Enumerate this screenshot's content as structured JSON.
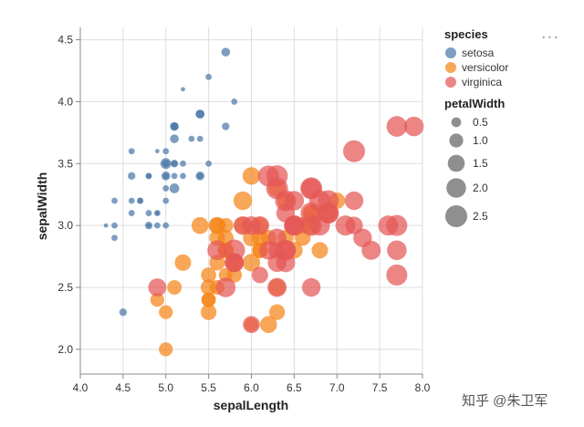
{
  "menu": {
    "icon": "more-horizontal-icon",
    "glyph": "···"
  },
  "watermark": "知乎 @朱卫军",
  "legend": {
    "species_title": "species",
    "size_title": "petalWidth"
  },
  "chart_data": {
    "type": "scatter",
    "title": "",
    "xlabel": "sepalLength",
    "ylabel": "sepalWidth",
    "xlim": [
      4.0,
      8.0
    ],
    "ylim": [
      1.8,
      4.6
    ],
    "xticks": [
      "4.0",
      "4.5",
      "5.0",
      "5.5",
      "6.0",
      "6.5",
      "7.0",
      "7.5",
      "8.0"
    ],
    "yticks": [
      "2.0",
      "2.5",
      "3.0",
      "3.5",
      "4.0",
      "4.5"
    ],
    "grid": true,
    "legend_position": "right",
    "size_field": "petalWidth",
    "size_legend": [
      0.5,
      1.0,
      1.5,
      2.0,
      2.5
    ],
    "series": [
      {
        "name": "setosa",
        "color": "#4c78a8",
        "points": [
          [
            5.1,
            3.5,
            0.2
          ],
          [
            4.9,
            3.0,
            0.2
          ],
          [
            4.7,
            3.2,
            0.2
          ],
          [
            4.6,
            3.1,
            0.2
          ],
          [
            5.0,
            3.6,
            0.2
          ],
          [
            5.4,
            3.9,
            0.4
          ],
          [
            4.6,
            3.4,
            0.3
          ],
          [
            5.0,
            3.4,
            0.2
          ],
          [
            4.4,
            2.9,
            0.2
          ],
          [
            4.9,
            3.1,
            0.1
          ],
          [
            5.4,
            3.7,
            0.2
          ],
          [
            4.8,
            3.4,
            0.2
          ],
          [
            4.8,
            3.0,
            0.1
          ],
          [
            4.3,
            3.0,
            0.1
          ],
          [
            5.8,
            4.0,
            0.2
          ],
          [
            5.7,
            4.4,
            0.4
          ],
          [
            5.4,
            3.9,
            0.4
          ],
          [
            5.1,
            3.5,
            0.3
          ],
          [
            5.7,
            3.8,
            0.3
          ],
          [
            5.1,
            3.8,
            0.3
          ],
          [
            5.4,
            3.4,
            0.2
          ],
          [
            5.1,
            3.7,
            0.4
          ],
          [
            4.6,
            3.6,
            0.2
          ],
          [
            5.1,
            3.3,
            0.5
          ],
          [
            4.8,
            3.4,
            0.2
          ],
          [
            5.0,
            3.0,
            0.2
          ],
          [
            5.0,
            3.4,
            0.4
          ],
          [
            5.2,
            3.5,
            0.2
          ],
          [
            5.2,
            3.4,
            0.2
          ],
          [
            4.7,
            3.2,
            0.2
          ],
          [
            4.8,
            3.1,
            0.2
          ],
          [
            5.4,
            3.4,
            0.4
          ],
          [
            5.2,
            4.1,
            0.1
          ],
          [
            5.5,
            4.2,
            0.2
          ],
          [
            4.9,
            3.1,
            0.2
          ],
          [
            5.0,
            3.2,
            0.2
          ],
          [
            5.5,
            3.5,
            0.2
          ],
          [
            4.9,
            3.6,
            0.1
          ],
          [
            4.4,
            3.0,
            0.2
          ],
          [
            5.1,
            3.4,
            0.2
          ],
          [
            5.0,
            3.5,
            0.3
          ],
          [
            4.5,
            2.3,
            0.3
          ],
          [
            4.4,
            3.2,
            0.2
          ],
          [
            5.0,
            3.5,
            0.6
          ],
          [
            5.1,
            3.8,
            0.4
          ],
          [
            4.8,
            3.0,
            0.3
          ],
          [
            5.1,
            3.8,
            0.2
          ],
          [
            4.6,
            3.2,
            0.2
          ],
          [
            5.3,
            3.7,
            0.2
          ],
          [
            5.0,
            3.3,
            0.2
          ]
        ]
      },
      {
        "name": "versicolor",
        "color": "#f58518",
        "points": [
          [
            7.0,
            3.2,
            1.4
          ],
          [
            6.4,
            3.2,
            1.5
          ],
          [
            6.9,
            3.1,
            1.5
          ],
          [
            5.5,
            2.3,
            1.3
          ],
          [
            6.5,
            2.8,
            1.5
          ],
          [
            5.7,
            2.8,
            1.3
          ],
          [
            6.3,
            3.3,
            1.6
          ],
          [
            4.9,
            2.4,
            1.0
          ],
          [
            6.6,
            2.9,
            1.3
          ],
          [
            5.2,
            2.7,
            1.4
          ],
          [
            5.0,
            2.0,
            1.0
          ],
          [
            5.9,
            3.0,
            1.5
          ],
          [
            6.0,
            2.2,
            1.0
          ],
          [
            6.1,
            2.9,
            1.4
          ],
          [
            5.6,
            2.9,
            1.3
          ],
          [
            6.7,
            3.1,
            1.4
          ],
          [
            5.6,
            3.0,
            1.5
          ],
          [
            5.8,
            2.7,
            1.0
          ],
          [
            6.2,
            2.2,
            1.5
          ],
          [
            5.6,
            2.5,
            1.1
          ],
          [
            5.9,
            3.2,
            1.8
          ],
          [
            6.1,
            2.8,
            1.3
          ],
          [
            6.3,
            2.5,
            1.5
          ],
          [
            6.1,
            2.8,
            1.2
          ],
          [
            6.4,
            2.9,
            1.3
          ],
          [
            6.6,
            3.0,
            1.4
          ],
          [
            6.8,
            2.8,
            1.4
          ],
          [
            6.7,
            3.0,
            1.7
          ],
          [
            6.0,
            2.9,
            1.5
          ],
          [
            5.7,
            2.6,
            1.0
          ],
          [
            5.5,
            2.4,
            1.1
          ],
          [
            5.5,
            2.4,
            1.0
          ],
          [
            5.8,
            2.7,
            1.2
          ],
          [
            6.0,
            2.7,
            1.6
          ],
          [
            5.4,
            3.0,
            1.5
          ],
          [
            6.0,
            3.4,
            1.6
          ],
          [
            6.7,
            3.1,
            1.5
          ],
          [
            6.3,
            2.3,
            1.3
          ],
          [
            5.6,
            3.0,
            1.3
          ],
          [
            5.5,
            2.5,
            1.3
          ],
          [
            5.5,
            2.6,
            1.2
          ],
          [
            6.1,
            3.0,
            1.4
          ],
          [
            5.8,
            2.6,
            1.2
          ],
          [
            5.0,
            2.3,
            1.0
          ],
          [
            5.6,
            2.7,
            1.3
          ],
          [
            5.7,
            3.0,
            1.2
          ],
          [
            5.7,
            2.9,
            1.3
          ],
          [
            6.2,
            2.9,
            1.3
          ],
          [
            5.1,
            2.5,
            1.1
          ],
          [
            5.7,
            2.8,
            1.3
          ]
        ]
      },
      {
        "name": "virginica",
        "color": "#e45756",
        "points": [
          [
            6.3,
            3.3,
            2.5
          ],
          [
            5.8,
            2.7,
            1.9
          ],
          [
            7.1,
            3.0,
            2.1
          ],
          [
            6.3,
            2.9,
            1.8
          ],
          [
            6.5,
            3.0,
            2.2
          ],
          [
            7.6,
            3.0,
            2.1
          ],
          [
            4.9,
            2.5,
            1.7
          ],
          [
            7.3,
            2.9,
            1.8
          ],
          [
            6.7,
            2.5,
            1.8
          ],
          [
            7.2,
            3.6,
            2.5
          ],
          [
            6.5,
            3.2,
            2.0
          ],
          [
            6.4,
            2.7,
            1.9
          ],
          [
            6.8,
            3.0,
            2.1
          ],
          [
            5.7,
            2.5,
            2.0
          ],
          [
            5.8,
            2.8,
            2.4
          ],
          [
            6.4,
            3.2,
            2.3
          ],
          [
            6.5,
            3.0,
            1.8
          ],
          [
            7.7,
            3.8,
            2.2
          ],
          [
            7.7,
            2.6,
            2.3
          ],
          [
            6.0,
            2.2,
            1.5
          ],
          [
            6.9,
            3.2,
            2.3
          ],
          [
            5.6,
            2.8,
            2.0
          ],
          [
            7.7,
            2.8,
            2.0
          ],
          [
            6.3,
            2.7,
            1.8
          ],
          [
            6.7,
            3.3,
            2.1
          ],
          [
            7.2,
            3.2,
            1.8
          ],
          [
            6.2,
            2.8,
            1.8
          ],
          [
            6.1,
            3.0,
            1.8
          ],
          [
            6.4,
            2.8,
            2.1
          ],
          [
            7.2,
            3.0,
            1.6
          ],
          [
            7.4,
            2.8,
            1.9
          ],
          [
            7.9,
            3.8,
            2.0
          ],
          [
            6.4,
            2.8,
            2.2
          ],
          [
            6.3,
            2.8,
            1.5
          ],
          [
            6.1,
            2.6,
            1.4
          ],
          [
            7.7,
            3.0,
            2.3
          ],
          [
            6.3,
            3.4,
            2.4
          ],
          [
            6.4,
            3.1,
            1.8
          ],
          [
            6.0,
            3.0,
            1.8
          ],
          [
            6.9,
            3.1,
            2.1
          ],
          [
            6.7,
            3.1,
            2.4
          ],
          [
            6.9,
            3.1,
            2.3
          ],
          [
            5.8,
            2.7,
            1.9
          ],
          [
            6.8,
            3.2,
            2.3
          ],
          [
            6.7,
            3.3,
            2.5
          ],
          [
            6.7,
            3.0,
            2.3
          ],
          [
            6.3,
            2.5,
            1.9
          ],
          [
            6.5,
            3.0,
            2.0
          ],
          [
            6.2,
            3.4,
            2.3
          ],
          [
            5.9,
            3.0,
            1.8
          ]
        ]
      }
    ]
  }
}
